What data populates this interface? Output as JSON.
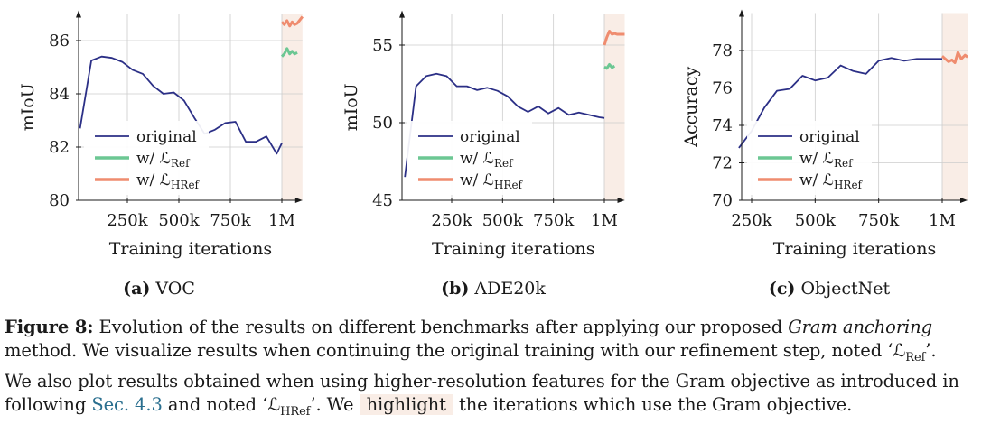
{
  "legend_labels": {
    "original": "original",
    "ref": "w/ ℒ",
    "ref_sub": "Ref",
    "href": "w/ ℒ",
    "href_sub": "HRef"
  },
  "colors": {
    "original": "#2b2f86",
    "ref": "#6cc793",
    "href": "#ef8c6f",
    "highlight": "#f9ede6",
    "grid": "#cccccc"
  },
  "chart_data": [
    {
      "type": "line",
      "subfig_label": "(a)",
      "subfig_name": "VOC",
      "xlabel": "Training iterations",
      "ylabel": "mIoU",
      "xlim": [
        20000,
        1100000
      ],
      "ylim": [
        80,
        87
      ],
      "xticks": [
        250000,
        500000,
        750000,
        1000000
      ],
      "xtick_labels": [
        "250k",
        "500k",
        "750k",
        "1M"
      ],
      "yticks": [
        80,
        82,
        84,
        86
      ],
      "ytick_labels": [
        "80",
        "82",
        "84",
        "86"
      ],
      "highlight_x": [
        1000000,
        1100000
      ],
      "legend_position": "bottom-left",
      "series": [
        {
          "key": "original",
          "x": [
            20000,
            75000,
            125000,
            175000,
            225000,
            275000,
            325000,
            375000,
            425000,
            475000,
            525000,
            575000,
            625000,
            675000,
            725000,
            775000,
            825000,
            875000,
            925000,
            975000,
            1000000
          ],
          "y": [
            82.7,
            85.25,
            85.4,
            85.35,
            85.2,
            84.9,
            84.75,
            84.3,
            84.0,
            84.05,
            83.75,
            83.1,
            82.5,
            82.65,
            82.9,
            82.95,
            82.2,
            82.2,
            82.4,
            81.75,
            82.15
          ]
        },
        {
          "key": "ref",
          "x": [
            1000000,
            1012000,
            1025000,
            1038000,
            1050000,
            1062000,
            1075000
          ],
          "y": [
            85.4,
            85.5,
            85.7,
            85.5,
            85.6,
            85.5,
            85.55
          ]
        },
        {
          "key": "href",
          "x": [
            1000000,
            1012000,
            1025000,
            1038000,
            1050000,
            1062000,
            1075000,
            1090000,
            1100000
          ],
          "y": [
            86.7,
            86.6,
            86.75,
            86.55,
            86.7,
            86.6,
            86.65,
            86.8,
            86.9
          ]
        }
      ]
    },
    {
      "type": "line",
      "subfig_label": "(b)",
      "subfig_name": "ADE20k",
      "xlabel": "Training iterations",
      "ylabel": "mIoU",
      "xlim": [
        20000,
        1100000
      ],
      "ylim": [
        45,
        57
      ],
      "xticks": [
        250000,
        500000,
        750000,
        1000000
      ],
      "xtick_labels": [
        "250k",
        "500k",
        "750k",
        "1M"
      ],
      "yticks": [
        45,
        50,
        55
      ],
      "ytick_labels": [
        "45",
        "50",
        "55"
      ],
      "highlight_x": [
        1000000,
        1100000
      ],
      "legend_position": "bottom-left",
      "series": [
        {
          "key": "original",
          "x": [
            20000,
            75000,
            125000,
            175000,
            225000,
            275000,
            325000,
            375000,
            425000,
            475000,
            525000,
            575000,
            625000,
            675000,
            725000,
            775000,
            825000,
            875000,
            925000,
            975000,
            1000000
          ],
          "y": [
            46.5,
            52.35,
            53.0,
            53.15,
            53.0,
            52.35,
            52.35,
            52.1,
            52.25,
            52.05,
            51.7,
            51.05,
            50.7,
            51.05,
            50.6,
            50.95,
            50.5,
            50.65,
            50.5,
            50.35,
            50.3
          ]
        },
        {
          "key": "ref",
          "x": [
            1000000,
            1012000,
            1025000,
            1038000,
            1050000
          ],
          "y": [
            53.6,
            53.5,
            53.75,
            53.55,
            53.65
          ]
        },
        {
          "key": "href",
          "x": [
            1000000,
            1012000,
            1025000,
            1038000,
            1050000,
            1062000,
            1075000,
            1090000,
            1100000
          ],
          "y": [
            55.0,
            55.5,
            55.9,
            55.7,
            55.75,
            55.7,
            55.7,
            55.7,
            55.7
          ]
        }
      ]
    },
    {
      "type": "line",
      "subfig_label": "(c)",
      "subfig_name": "ObjectNet",
      "xlabel": "Training iterations",
      "ylabel": "Accuracy",
      "xlim": [
        200000,
        1100000
      ],
      "ylim": [
        70,
        80
      ],
      "xticks": [
        250000,
        500000,
        750000,
        1000000
      ],
      "xtick_labels": [
        "250k",
        "500k",
        "750k",
        "1M"
      ],
      "yticks": [
        70,
        72,
        74,
        76,
        78
      ],
      "ytick_labels": [
        "70",
        "72",
        "74",
        "76",
        "78"
      ],
      "highlight_x": [
        1000000,
        1100000
      ],
      "legend_position": "bottom-left",
      "series": [
        {
          "key": "original",
          "x": [
            200000,
            250000,
            300000,
            350000,
            400000,
            450000,
            500000,
            550000,
            600000,
            650000,
            700000,
            750000,
            800000,
            850000,
            900000,
            950000,
            1000000
          ],
          "y": [
            72.8,
            73.7,
            74.95,
            75.85,
            75.95,
            76.65,
            76.4,
            76.55,
            77.2,
            76.9,
            76.75,
            77.45,
            77.6,
            77.45,
            77.55,
            77.55,
            77.55
          ]
        },
        {
          "key": "href",
          "x": [
            1000000,
            1012000,
            1025000,
            1038000,
            1050000,
            1062000,
            1075000,
            1090000,
            1100000
          ],
          "y": [
            77.7,
            77.55,
            77.4,
            77.5,
            77.35,
            77.9,
            77.55,
            77.75,
            77.65
          ]
        }
      ]
    }
  ],
  "caption": {
    "fig_label": "Figure 8:",
    "line1_a": " Evolution of the results on different benchmarks after applying our proposed ",
    "line1_em": "Gram anchoring",
    "line2": "method. We visualize results when continuing the original training with our refinement step, noted ‘ℒ",
    "line2_sub": "Ref",
    "line2_end": "’.",
    "line3": "We also plot results obtained when using higher-resolution features for the Gram objective as introduced in",
    "line4_a": "following ",
    "line4_link": "Sec. 4.3",
    "line4_b": " and noted ‘ℒ",
    "line4_sub": "HRef",
    "line4_c": "’. We ",
    "line4_hl": "highlight",
    "line4_d": " the iterations which use the Gram objective."
  }
}
